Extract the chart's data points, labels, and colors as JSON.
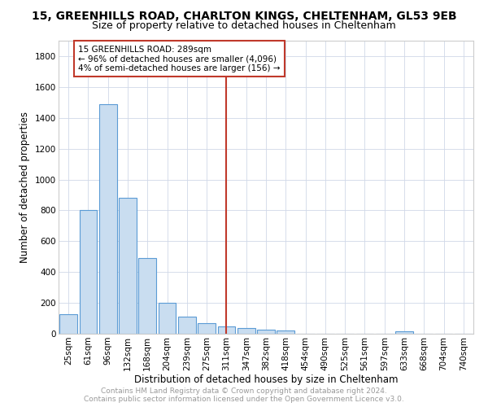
{
  "title": "15, GREENHILLS ROAD, CHARLTON KINGS, CHELTENHAM, GL53 9EB",
  "subtitle": "Size of property relative to detached houses in Cheltenham",
  "xlabel": "Distribution of detached houses by size in Cheltenham",
  "ylabel": "Number of detached properties",
  "categories": [
    "25sqm",
    "61sqm",
    "96sqm",
    "132sqm",
    "168sqm",
    "204sqm",
    "239sqm",
    "275sqm",
    "311sqm",
    "347sqm",
    "382sqm",
    "418sqm",
    "454sqm",
    "490sqm",
    "525sqm",
    "561sqm",
    "597sqm",
    "633sqm",
    "668sqm",
    "704sqm",
    "740sqm"
  ],
  "values": [
    125,
    800,
    1490,
    880,
    490,
    200,
    110,
    70,
    50,
    35,
    25,
    20,
    0,
    0,
    0,
    0,
    0,
    15,
    0,
    0,
    0
  ],
  "bar_color": "#c9ddf0",
  "bar_edge_color": "#5b9bd5",
  "vline_x": 8.0,
  "vline_color": "#c0392b",
  "annotation_text": "15 GREENHILLS ROAD: 289sqm\n← 96% of detached houses are smaller (4,096)\n4% of semi-detached houses are larger (156) →",
  "annotation_box_color": "#c0392b",
  "ylim": [
    0,
    1900
  ],
  "yticks": [
    0,
    200,
    400,
    600,
    800,
    1000,
    1200,
    1400,
    1600,
    1800
  ],
  "footnote1": "Contains HM Land Registry data © Crown copyright and database right 2024.",
  "footnote2": "Contains public sector information licensed under the Open Government Licence v3.0.",
  "title_fontsize": 10,
  "subtitle_fontsize": 9,
  "axis_label_fontsize": 8.5,
  "tick_fontsize": 7.5,
  "footnote_fontsize": 6.5,
  "annotation_fontsize": 7.5
}
